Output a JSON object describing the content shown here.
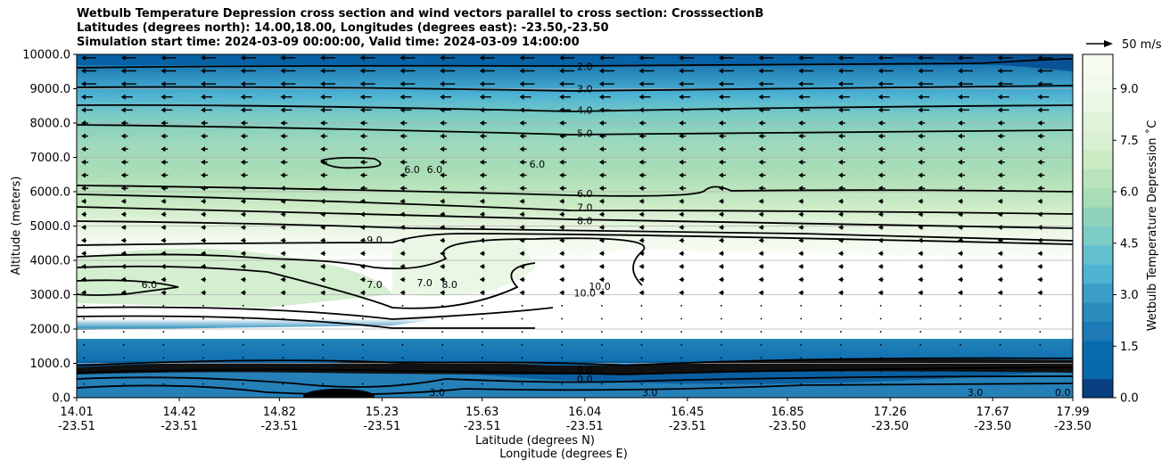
{
  "chart_data": {
    "type": "contourf",
    "title_lines": [
      "Wetbulb Temperature Depression cross section and wind vectors parallel to cross section: CrosssectionB",
      "Latitudes (degrees north): 14.00,18.00, Longitudes (degrees east): -23.50,-23.50",
      "Simulation start time: 2024-03-09 00:00:00, Valid time: 2024-03-09 14:00:00"
    ],
    "ylabel": "Altitude (meters)",
    "xlabel_lat": "Latitude (degrees N)",
    "xlabel_lon": "Longitude (degrees E)",
    "ylim": [
      0,
      10000
    ],
    "yticks": [
      "0.0",
      "1000.0",
      "2000.0",
      "3000.0",
      "4000.0",
      "5000.0",
      "6000.0",
      "7000.0",
      "8000.0",
      "9000.0",
      "10000.0"
    ],
    "x_ticks": [
      {
        "lat": "14.01",
        "lon": "-23.51"
      },
      {
        "lat": "14.42",
        "lon": "-23.51"
      },
      {
        "lat": "14.82",
        "lon": "-23.51"
      },
      {
        "lat": "15.23",
        "lon": "-23.51"
      },
      {
        "lat": "15.63",
        "lon": "-23.51"
      },
      {
        "lat": "16.04",
        "lon": "-23.51"
      },
      {
        "lat": "16.45",
        "lon": "-23.51"
      },
      {
        "lat": "16.85",
        "lon": "-23.50"
      },
      {
        "lat": "17.26",
        "lon": "-23.50"
      },
      {
        "lat": "17.67",
        "lon": "-23.50"
      },
      {
        "lat": "17.99",
        "lon": "-23.50"
      }
    ],
    "colorbar": {
      "label": "Wetbulb Temperature Depression ˚C",
      "range": [
        0,
        10
      ],
      "ticks": [
        "0.0",
        "1.5",
        "3.0",
        "4.5",
        "6.0",
        "7.5",
        "9.0"
      ]
    },
    "wind_key": "50 m/s",
    "contour_labels": [
      {
        "text": "2.0",
        "lat": 16.04,
        "alt": 9650
      },
      {
        "text": "3.0",
        "lat": 16.04,
        "alt": 9000
      },
      {
        "text": "4.0",
        "lat": 16.04,
        "alt": 8380
      },
      {
        "text": "5.0",
        "lat": 16.04,
        "alt": 7700
      },
      {
        "text": "6.0",
        "lat": 15.85,
        "alt": 6800
      },
      {
        "text": "6.0",
        "lat": 15.35,
        "alt": 6650
      },
      {
        "text": "6.0",
        "lat": 15.44,
        "alt": 6650
      },
      {
        "text": "6.0",
        "lat": 16.04,
        "alt": 5950
      },
      {
        "text": "7.0",
        "lat": 16.04,
        "alt": 5550
      },
      {
        "text": "8.0",
        "lat": 16.04,
        "alt": 5150
      },
      {
        "text": "9.0",
        "lat": 15.2,
        "alt": 4600
      },
      {
        "text": "6.0",
        "lat": 14.3,
        "alt": 3300
      },
      {
        "text": "7.0",
        "lat": 15.2,
        "alt": 3300
      },
      {
        "text": "7.0",
        "lat": 15.4,
        "alt": 3350
      },
      {
        "text": "8.0",
        "lat": 15.5,
        "alt": 3300
      },
      {
        "text": "10.0",
        "lat": 16.04,
        "alt": 3050
      },
      {
        "text": "10.0",
        "lat": 16.1,
        "alt": 3250
      },
      {
        "text": "3.0",
        "lat": 15.45,
        "alt": 150
      },
      {
        "text": "3.0",
        "lat": 16.3,
        "alt": 150
      },
      {
        "text": "3.0",
        "lat": 17.6,
        "alt": 150
      },
      {
        "text": "0.0",
        "lat": 17.95,
        "alt": 150
      },
      {
        "text": "0.0",
        "lat": 16.04,
        "alt": 800
      },
      {
        "text": "0.0",
        "lat": 16.04,
        "alt": 550
      }
    ]
  }
}
